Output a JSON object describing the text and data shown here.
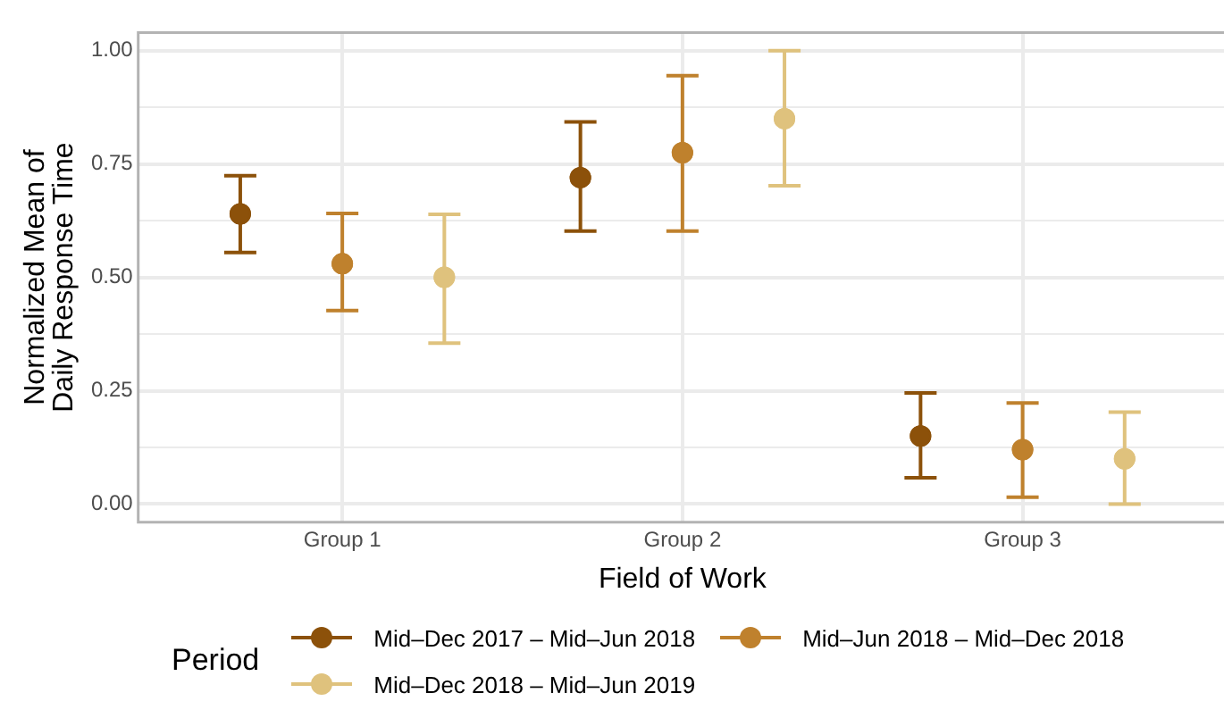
{
  "chart_data": {
    "type": "scatter",
    "xlabel": "Field of Work",
    "ylabel": "Normalized Mean of\nDaily Response Time",
    "legend_title": "Period",
    "categories": [
      "Group 1",
      "Group 2",
      "Group 3"
    ],
    "series": [
      {
        "name": "Mid–Dec 2017 – Mid–Jun 2018",
        "color": "#8c510a",
        "values": [
          0.64,
          0.72,
          0.15
        ],
        "errors": [
          [
            0.555,
            0.724
          ],
          [
            0.602,
            0.843
          ],
          [
            0.058,
            0.245
          ]
        ]
      },
      {
        "name": "Mid–Jun 2018 – Mid–Dec 2018",
        "color": "#bf812d",
        "values": [
          0.53,
          0.775,
          0.12
        ],
        "errors": [
          [
            0.427,
            0.641
          ],
          [
            0.602,
            0.945
          ],
          [
            0.015,
            0.223
          ]
        ]
      },
      {
        "name": "Mid–Dec 2018 – Mid–Jun 2019",
        "color": "#dfc27d",
        "values": [
          0.5,
          0.85,
          0.1
        ],
        "errors": [
          [
            0.355,
            0.639
          ],
          [
            0.702,
            1.0
          ],
          [
            0.0,
            0.203
          ]
        ]
      }
    ],
    "ylim": [
      -0.04,
      1.04
    ],
    "yticks": [
      {
        "value": 0,
        "label": "0.00"
      },
      {
        "value": 0.125,
        "label": null
      },
      {
        "value": 0.25,
        "label": "0.25"
      },
      {
        "value": 0.375,
        "label": null
      },
      {
        "value": 0.5,
        "label": "0.50"
      },
      {
        "value": 0.625,
        "label": null
      },
      {
        "value": 0.75,
        "label": "0.75"
      },
      {
        "value": 0.875,
        "label": null
      },
      {
        "value": 1,
        "label": "1.00"
      }
    ],
    "grid": true,
    "legend": "bottom",
    "marker": "circle"
  }
}
